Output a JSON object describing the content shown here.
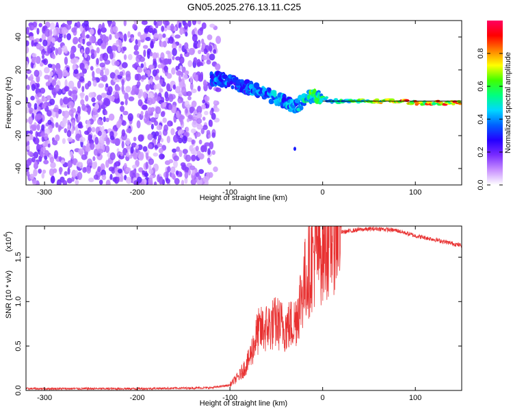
{
  "title": "GN05.2025.276.13.11.C25",
  "chart_data": [
    {
      "type": "heatmap",
      "xlabel": "Height of straight line (km)",
      "ylabel": "Frequency (Hz)",
      "xlim": [
        -320,
        150
      ],
      "ylim": [
        -50,
        50
      ],
      "x_ticks": [
        "-300",
        "-200",
        "-100",
        "0",
        "100"
      ],
      "x_tick_values": [
        -300,
        -200,
        -100,
        0,
        100
      ],
      "y_ticks": [
        "-40",
        "-20",
        "0",
        "20",
        "40"
      ],
      "y_tick_values": [
        -40,
        -20,
        0,
        20,
        40
      ],
      "colorbar": {
        "label": "Normalized spectral amplitude",
        "range": [
          0,
          1
        ],
        "ticks": [
          "0.0",
          "0.2",
          "0.4",
          "0.6",
          "0.8"
        ],
        "tick_values": [
          0.0,
          0.2,
          0.4,
          0.6,
          0.8
        ],
        "colors": [
          "#ffffff",
          "#c890ff",
          "#7a2cff",
          "#2400ff",
          "#0060ff",
          "#00d8ff",
          "#00ff80",
          "#40ff00",
          "#ffff00",
          "#ff8000",
          "#ff0000",
          "#ff0060"
        ]
      },
      "noise_region": {
        "x_range": [
          -320,
          -110
        ],
        "freq_range": [
          -50,
          50
        ],
        "amplitude": 0.15
      },
      "signal_track": [
        {
          "x": -120,
          "freq": 15,
          "amp": 0.35
        },
        {
          "x": -110,
          "freq": 14,
          "amp": 0.45
        },
        {
          "x": -100,
          "freq": 13,
          "amp": 0.4
        },
        {
          "x": -90,
          "freq": 11,
          "amp": 0.35
        },
        {
          "x": -80,
          "freq": 9,
          "amp": 0.4
        },
        {
          "x": -70,
          "freq": 7,
          "amp": 0.45
        },
        {
          "x": -60,
          "freq": 5,
          "amp": 0.4
        },
        {
          "x": -50,
          "freq": 3,
          "amp": 0.45
        },
        {
          "x": -40,
          "freq": 0,
          "amp": 0.45
        },
        {
          "x": -30,
          "freq": -2,
          "amp": 0.45
        },
        {
          "x": -20,
          "freq": 1,
          "amp": 0.5
        },
        {
          "x": -10,
          "freq": 5,
          "amp": 0.65
        },
        {
          "x": 0,
          "freq": 3,
          "amp": 0.55
        },
        {
          "x": 10,
          "freq": 1,
          "amp": 0.5
        },
        {
          "x": 30,
          "freq": 1,
          "amp": 0.6
        },
        {
          "x": 50,
          "freq": 1,
          "amp": 0.7
        },
        {
          "x": 70,
          "freq": 1,
          "amp": 0.8
        },
        {
          "x": 85,
          "freq": 1,
          "amp": 0.95
        },
        {
          "x": 100,
          "freq": 0,
          "amp": 0.8
        },
        {
          "x": 120,
          "freq": 0,
          "amp": 0.85
        },
        {
          "x": 150,
          "freq": 0,
          "amp": 0.9
        }
      ],
      "outlier_points": [
        {
          "x": -30,
          "freq": -28
        }
      ],
      "grid": false
    },
    {
      "type": "line",
      "xlabel": "Height of straight line (km)",
      "ylabel": "SNR (10 * v/v)",
      "scale_label": "(x10",
      "scale_exponent": "4",
      "scale_suffix": ")",
      "xlim": [
        -320,
        150
      ],
      "ylim": [
        0,
        18500
      ],
      "x_ticks": [
        "-300",
        "-200",
        "-100",
        "0",
        "100"
      ],
      "x_tick_values": [
        -300,
        -200,
        -100,
        0,
        100
      ],
      "y_ticks": [
        "0.0",
        "0.5",
        "1.0",
        "1.5"
      ],
      "y_tick_values": [
        0,
        5000,
        10000,
        15000
      ],
      "color": "#e83030",
      "envelope": [
        {
          "x": -320,
          "y": 200
        },
        {
          "x": -200,
          "y": 200
        },
        {
          "x": -120,
          "y": 300
        },
        {
          "x": -100,
          "y": 600
        },
        {
          "x": -90,
          "y": 1500
        },
        {
          "x": -80,
          "y": 3000
        },
        {
          "x": -70,
          "y": 6000
        },
        {
          "x": -60,
          "y": 6500
        },
        {
          "x": -50,
          "y": 7000
        },
        {
          "x": -40,
          "y": 6500
        },
        {
          "x": -30,
          "y": 7000
        },
        {
          "x": -20,
          "y": 11000
        },
        {
          "x": -10,
          "y": 14000
        },
        {
          "x": 0,
          "y": 15000
        },
        {
          "x": 10,
          "y": 16500
        },
        {
          "x": 20,
          "y": 17800
        },
        {
          "x": 40,
          "y": 18100
        },
        {
          "x": 60,
          "y": 18200
        },
        {
          "x": 80,
          "y": 18000
        },
        {
          "x": 100,
          "y": 17400
        },
        {
          "x": 120,
          "y": 17000
        },
        {
          "x": 150,
          "y": 16300
        }
      ],
      "grid": false
    }
  ]
}
